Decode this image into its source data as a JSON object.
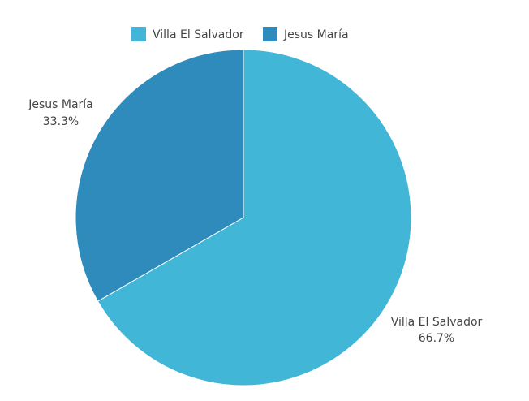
{
  "chart_data": {
    "type": "pie",
    "categories": [
      "Villa El Salvador",
      "Jesus María"
    ],
    "values": [
      66.7,
      33.3
    ],
    "percent_labels": [
      "66.7%",
      "33.3%"
    ],
    "colors": [
      "#41b6d6",
      "#2e8bbb"
    ],
    "legend": {
      "placement": "top-center",
      "entries": [
        "Villa El Salvador",
        "Jesus María"
      ]
    }
  }
}
